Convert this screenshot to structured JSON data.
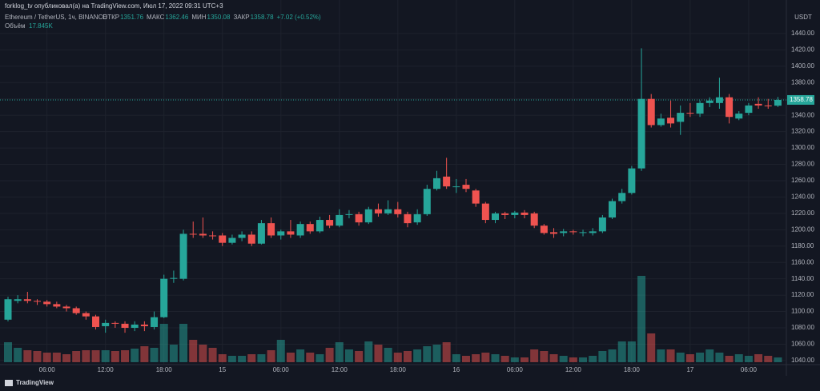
{
  "header": {
    "publisher": "forklog_tv опубликовал(а) на TradingView.com, Июл 17, 2022 09:31 UTC+3",
    "symbol": "Ethereum / TetherUS, 1ч, BINANCE",
    "open_label": "ОТКР",
    "high_label": "МАКС",
    "low_label": "МИН",
    "close_label": "ЗАКР",
    "change": "+7.02 (+0.52%)",
    "volume_label": "Объём",
    "volume_value": "17.845K"
  },
  "footer": "TradingView",
  "chart_data": {
    "type": "candlestick",
    "currency": "USDT",
    "categories": [
      null,
      null,
      null,
      null,
      "06:00",
      null,
      null,
      null,
      null,
      null,
      "12:00",
      null,
      null,
      null,
      null,
      null,
      "18:00",
      null,
      null,
      null,
      null,
      null,
      "15",
      null,
      null,
      null,
      null,
      null,
      "06:00",
      null,
      null,
      null,
      null,
      null,
      "12:00",
      null,
      null,
      null,
      null,
      null,
      "18:00",
      null,
      null,
      null,
      null,
      null,
      "16",
      null,
      null,
      null,
      null,
      null,
      "06:00",
      null,
      null,
      null,
      null,
      null,
      "12:00",
      null,
      null,
      null,
      null,
      null,
      "18:00",
      null,
      null,
      null,
      null,
      null,
      "17",
      null,
      null,
      null,
      null,
      null,
      "06:00",
      null,
      null,
      null
    ],
    "open": [
      1090,
      1113,
      1115,
      1113,
      1112,
      1109,
      1106,
      1104,
      1098,
      1094,
      1082,
      1086,
      1085,
      1080,
      1084,
      1081,
      1093,
      1140,
      1140,
      1195,
      1195,
      1193,
      1193,
      1184,
      1190,
      1194,
      1183,
      1208,
      1193,
      1198,
      1193,
      1207,
      1198,
      1212,
      1205,
      1218,
      1219,
      1209,
      1225,
      1220,
      1225,
      1219,
      1209,
      1219,
      1250,
      1265,
      1253,
      1255,
      1248,
      1232,
      1212,
      1220,
      1218,
      1221,
      1220,
      1205,
      1197,
      1196,
      1198,
      1197,
      1196,
      1198,
      1215,
      1235,
      1245,
      1275,
      1360,
      1328,
      1337,
      1332,
      1343,
      1342,
      1355,
      1355,
      1362,
      1336,
      1343,
      1354,
      1352,
      1351.76
    ],
    "high": [
      1118,
      1120,
      1124,
      1115,
      1114,
      1112,
      1108,
      1106,
      1100,
      1096,
      1090,
      1088,
      1088,
      1088,
      1088,
      1100,
      1145,
      1150,
      1200,
      1210,
      1215,
      1198,
      1196,
      1194,
      1198,
      1198,
      1212,
      1215,
      1200,
      1212,
      1210,
      1210,
      1216,
      1218,
      1225,
      1224,
      1222,
      1228,
      1232,
      1236,
      1234,
      1222,
      1225,
      1255,
      1272,
      1288,
      1262,
      1262,
      1250,
      1234,
      1222,
      1222,
      1223,
      1224,
      1222,
      1207,
      1202,
      1201,
      1200,
      1200,
      1202,
      1218,
      1238,
      1250,
      1278,
      1422,
      1366,
      1342,
      1358,
      1352,
      1355,
      1358,
      1362,
      1386,
      1366,
      1345,
      1355,
      1362,
      1360,
      1362.46
    ],
    "low": [
      1088,
      1110,
      1110,
      1108,
      1106,
      1104,
      1100,
      1096,
      1090,
      1078,
      1074,
      1080,
      1074,
      1076,
      1076,
      1078,
      1092,
      1135,
      1138,
      1190,
      1190,
      1188,
      1180,
      1182,
      1186,
      1180,
      1182,
      1190,
      1188,
      1190,
      1190,
      1195,
      1196,
      1202,
      1203,
      1214,
      1205,
      1207,
      1216,
      1218,
      1215,
      1203,
      1206,
      1217,
      1248,
      1250,
      1245,
      1246,
      1228,
      1208,
      1208,
      1213,
      1214,
      1214,
      1202,
      1194,
      1190,
      1192,
      1194,
      1192,
      1193,
      1196,
      1213,
      1232,
      1243,
      1272,
      1325,
      1326,
      1325,
      1316,
      1338,
      1338,
      1350,
      1348,
      1330,
      1334,
      1340,
      1348,
      1348,
      1350.08
    ],
    "close": [
      1115,
      1115,
      1113,
      1112,
      1109,
      1106,
      1104,
      1098,
      1094,
      1081,
      1086,
      1085,
      1080,
      1084,
      1082,
      1093,
      1140,
      1141,
      1195,
      1194,
      1193,
      1192,
      1184,
      1190,
      1194,
      1183,
      1208,
      1193,
      1198,
      1194,
      1207,
      1198,
      1212,
      1205,
      1218,
      1219,
      1209,
      1225,
      1220,
      1225,
      1219,
      1208,
      1219,
      1250,
      1263,
      1253,
      1253,
      1250,
      1232,
      1212,
      1220,
      1218,
      1221,
      1218,
      1205,
      1196,
      1195,
      1198,
      1197,
      1197,
      1198,
      1215,
      1235,
      1245,
      1275,
      1360,
      1328,
      1336,
      1330,
      1343,
      1342,
      1355,
      1358,
      1362,
      1338,
      1342,
      1352,
      1352,
      1351,
      1358.78
    ],
    "volume": [
      75000,
      54000,
      45000,
      42000,
      36000,
      36000,
      30000,
      42000,
      45000,
      45000,
      45000,
      42000,
      45000,
      51000,
      60000,
      54000,
      144000,
      66000,
      144000,
      84000,
      66000,
      54000,
      30000,
      24000,
      24000,
      30000,
      30000,
      45000,
      84000,
      36000,
      48000,
      36000,
      30000,
      54000,
      75000,
      48000,
      42000,
      78000,
      66000,
      54000,
      36000,
      42000,
      48000,
      60000,
      66000,
      75000,
      30000,
      24000,
      30000,
      36000,
      30000,
      24000,
      18000,
      18000,
      48000,
      42000,
      30000,
      24000,
      18000,
      18000,
      24000,
      42000,
      48000,
      78000,
      78000,
      324000,
      108000,
      48000,
      48000,
      36000,
      30000,
      36000,
      48000,
      36000,
      24000,
      30000,
      24000,
      30000,
      24000,
      17845
    ],
    "up_color": "#26a69a",
    "down_color": "#ef5350",
    "ylim": [
      1036,
      1481
    ],
    "yticks": [
      {
        "value": 1040,
        "label": "1040.00"
      },
      {
        "value": 1060,
        "label": "1060.00"
      },
      {
        "value": 1080,
        "label": "1080.00"
      },
      {
        "value": 1100,
        "label": "1100.00"
      },
      {
        "value": 1120,
        "label": "1120.00"
      },
      {
        "value": 1140,
        "label": "1140.00"
      },
      {
        "value": 1160,
        "label": "1160.00"
      },
      {
        "value": 1180,
        "label": "1180.00"
      },
      {
        "value": 1200,
        "label": "1200.00"
      },
      {
        "value": 1220,
        "label": "1220.00"
      },
      {
        "value": 1240,
        "label": "1240.00"
      },
      {
        "value": 1260,
        "label": "1260.00"
      },
      {
        "value": 1280,
        "label": "1280.00"
      },
      {
        "value": 1300,
        "label": "1300.00"
      },
      {
        "value": 1320,
        "label": "1320.00"
      },
      {
        "value": 1340,
        "label": "1340.00"
      },
      {
        "value": 1360,
        "label": "1360.00"
      },
      {
        "value": 1380,
        "label": "1380.00"
      },
      {
        "value": 1400,
        "label": "1400.00"
      },
      {
        "value": 1420,
        "label": "1420.00"
      },
      {
        "value": 1440,
        "label": "1440.00"
      }
    ],
    "grid": true
  }
}
